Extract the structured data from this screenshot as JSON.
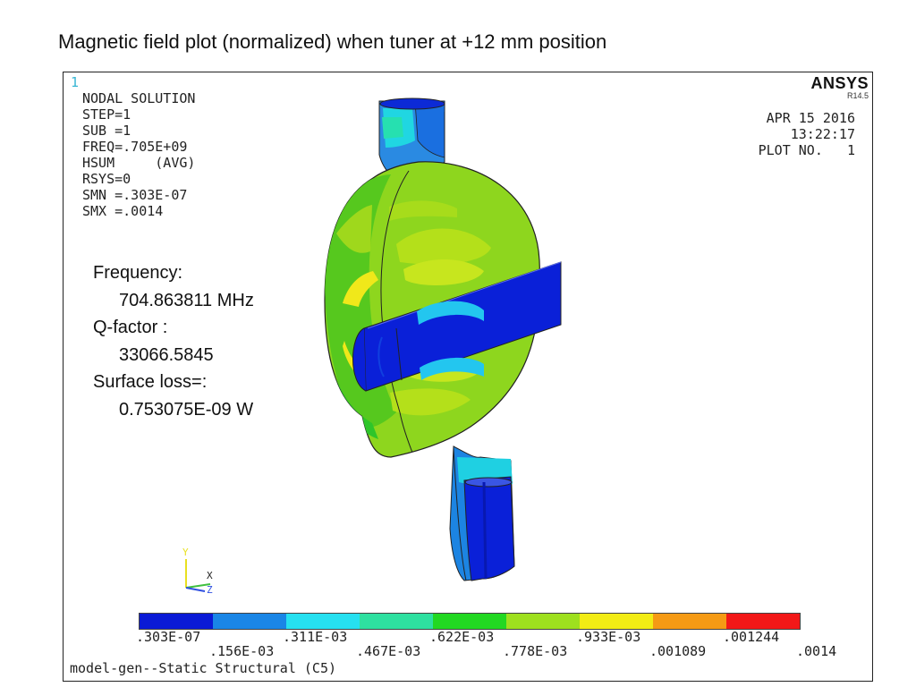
{
  "slide_title": "Magnetic field plot (normalized) when tuner at +12 mm position",
  "window_number": "1",
  "solution_info": [
    "NODAL SOLUTION",
    "",
    "STEP=1",
    "SUB =1",
    "FREQ=.705E+09",
    "HSUM     (AVG)",
    "RSYS=0",
    "SMN =.303E-07",
    "SMX =.0014"
  ],
  "brand": {
    "name": "ANSYS",
    "version": "R14.5"
  },
  "plot_stamp": {
    "date": "APR 15 2016",
    "time": "13:22:17",
    "plot_no": "PLOT NO.   1"
  },
  "results": {
    "frequency_label": "Frequency:",
    "frequency_value": "704.863811 MHz",
    "q_label": "Q-factor :",
    "q_value": "33066.5845",
    "loss_label": "Surface loss=:",
    "loss_value": "0.753075E-09 W"
  },
  "axes": {
    "y": "Y",
    "x": "X",
    "z": "Z"
  },
  "legend": {
    "colors": [
      "#0a1ad6",
      "#1a86e6",
      "#26e0f0",
      "#2ee0a0",
      "#22d822",
      "#9ee01e",
      "#f2ec14",
      "#f59a14",
      "#f21818"
    ],
    "labels_upper": [
      ".303E-07",
      ".311E-03",
      ".622E-03",
      ".933E-03",
      ".001244"
    ],
    "labels_lower": [
      ".156E-03",
      ".467E-03",
      ".778E-03",
      ".001089",
      ".0014"
    ]
  },
  "footer": "model-gen--Static Structural (C5)"
}
